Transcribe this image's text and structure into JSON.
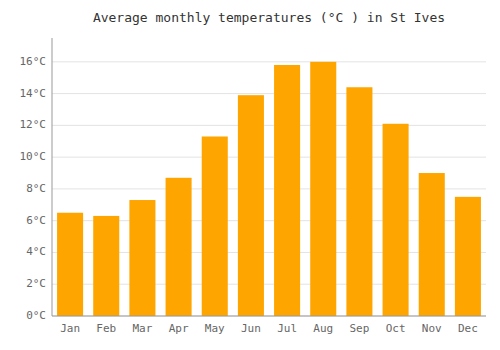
{
  "chart_data": {
    "type": "bar",
    "title": "Average monthly temperatures (°C ) in St Ives",
    "categories": [
      "Jan",
      "Feb",
      "Mar",
      "Apr",
      "May",
      "Jun",
      "Jul",
      "Aug",
      "Sep",
      "Oct",
      "Nov",
      "Dec"
    ],
    "values": [
      6.5,
      6.3,
      7.3,
      8.7,
      11.3,
      13.9,
      15.8,
      16.0,
      14.4,
      12.1,
      9.0,
      7.5
    ],
    "color": "#FFA500",
    "ylim": [
      0,
      17.5
    ],
    "yticks": [
      {
        "value": 0,
        "label": "0°C"
      },
      {
        "value": 2,
        "label": "2°C"
      },
      {
        "value": 4,
        "label": "4°C"
      },
      {
        "value": 6,
        "label": "6°C"
      },
      {
        "value": 8,
        "label": "8°C"
      },
      {
        "value": 10,
        "label": "10°C"
      },
      {
        "value": 12,
        "label": "12°C"
      },
      {
        "value": 14,
        "label": "14°C"
      },
      {
        "value": 16,
        "label": "16°C"
      }
    ],
    "grid": true
  }
}
